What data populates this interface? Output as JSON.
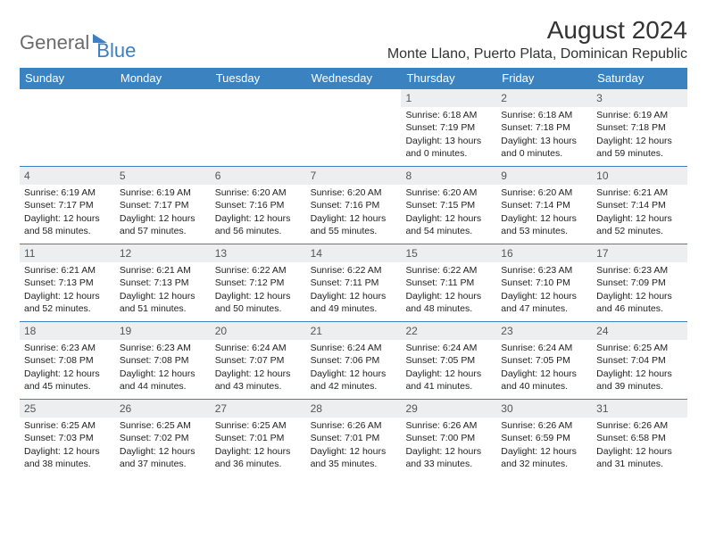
{
  "logo": {
    "part1": "General",
    "part2": "Blue"
  },
  "header": {
    "month_title": "August 2024",
    "location": "Monte Llano, Puerto Plata, Dominican Republic"
  },
  "colors": {
    "header_bar": "#3b83c0",
    "header_text": "#ffffff",
    "daynum_bg": "#eceef0",
    "daynum_text": "#555555",
    "body_text": "#222222",
    "logo_gray": "#6b6b6b",
    "logo_blue": "#3b7fc4",
    "rule": "#3b83c0"
  },
  "days_of_week": [
    "Sunday",
    "Monday",
    "Tuesday",
    "Wednesday",
    "Thursday",
    "Friday",
    "Saturday"
  ],
  "weeks": [
    [
      {
        "n": "",
        "sr": "",
        "ss": "",
        "dl": ""
      },
      {
        "n": "",
        "sr": "",
        "ss": "",
        "dl": ""
      },
      {
        "n": "",
        "sr": "",
        "ss": "",
        "dl": ""
      },
      {
        "n": "",
        "sr": "",
        "ss": "",
        "dl": ""
      },
      {
        "n": "1",
        "sr": "Sunrise: 6:18 AM",
        "ss": "Sunset: 7:19 PM",
        "dl": "Daylight: 13 hours and 0 minutes."
      },
      {
        "n": "2",
        "sr": "Sunrise: 6:18 AM",
        "ss": "Sunset: 7:18 PM",
        "dl": "Daylight: 13 hours and 0 minutes."
      },
      {
        "n": "3",
        "sr": "Sunrise: 6:19 AM",
        "ss": "Sunset: 7:18 PM",
        "dl": "Daylight: 12 hours and 59 minutes."
      }
    ],
    [
      {
        "n": "4",
        "sr": "Sunrise: 6:19 AM",
        "ss": "Sunset: 7:17 PM",
        "dl": "Daylight: 12 hours and 58 minutes."
      },
      {
        "n": "5",
        "sr": "Sunrise: 6:19 AM",
        "ss": "Sunset: 7:17 PM",
        "dl": "Daylight: 12 hours and 57 minutes."
      },
      {
        "n": "6",
        "sr": "Sunrise: 6:20 AM",
        "ss": "Sunset: 7:16 PM",
        "dl": "Daylight: 12 hours and 56 minutes."
      },
      {
        "n": "7",
        "sr": "Sunrise: 6:20 AM",
        "ss": "Sunset: 7:16 PM",
        "dl": "Daylight: 12 hours and 55 minutes."
      },
      {
        "n": "8",
        "sr": "Sunrise: 6:20 AM",
        "ss": "Sunset: 7:15 PM",
        "dl": "Daylight: 12 hours and 54 minutes."
      },
      {
        "n": "9",
        "sr": "Sunrise: 6:20 AM",
        "ss": "Sunset: 7:14 PM",
        "dl": "Daylight: 12 hours and 53 minutes."
      },
      {
        "n": "10",
        "sr": "Sunrise: 6:21 AM",
        "ss": "Sunset: 7:14 PM",
        "dl": "Daylight: 12 hours and 52 minutes."
      }
    ],
    [
      {
        "n": "11",
        "sr": "Sunrise: 6:21 AM",
        "ss": "Sunset: 7:13 PM",
        "dl": "Daylight: 12 hours and 52 minutes."
      },
      {
        "n": "12",
        "sr": "Sunrise: 6:21 AM",
        "ss": "Sunset: 7:13 PM",
        "dl": "Daylight: 12 hours and 51 minutes."
      },
      {
        "n": "13",
        "sr": "Sunrise: 6:22 AM",
        "ss": "Sunset: 7:12 PM",
        "dl": "Daylight: 12 hours and 50 minutes."
      },
      {
        "n": "14",
        "sr": "Sunrise: 6:22 AM",
        "ss": "Sunset: 7:11 PM",
        "dl": "Daylight: 12 hours and 49 minutes."
      },
      {
        "n": "15",
        "sr": "Sunrise: 6:22 AM",
        "ss": "Sunset: 7:11 PM",
        "dl": "Daylight: 12 hours and 48 minutes."
      },
      {
        "n": "16",
        "sr": "Sunrise: 6:23 AM",
        "ss": "Sunset: 7:10 PM",
        "dl": "Daylight: 12 hours and 47 minutes."
      },
      {
        "n": "17",
        "sr": "Sunrise: 6:23 AM",
        "ss": "Sunset: 7:09 PM",
        "dl": "Daylight: 12 hours and 46 minutes."
      }
    ],
    [
      {
        "n": "18",
        "sr": "Sunrise: 6:23 AM",
        "ss": "Sunset: 7:08 PM",
        "dl": "Daylight: 12 hours and 45 minutes."
      },
      {
        "n": "19",
        "sr": "Sunrise: 6:23 AM",
        "ss": "Sunset: 7:08 PM",
        "dl": "Daylight: 12 hours and 44 minutes."
      },
      {
        "n": "20",
        "sr": "Sunrise: 6:24 AM",
        "ss": "Sunset: 7:07 PM",
        "dl": "Daylight: 12 hours and 43 minutes."
      },
      {
        "n": "21",
        "sr": "Sunrise: 6:24 AM",
        "ss": "Sunset: 7:06 PM",
        "dl": "Daylight: 12 hours and 42 minutes."
      },
      {
        "n": "22",
        "sr": "Sunrise: 6:24 AM",
        "ss": "Sunset: 7:05 PM",
        "dl": "Daylight: 12 hours and 41 minutes."
      },
      {
        "n": "23",
        "sr": "Sunrise: 6:24 AM",
        "ss": "Sunset: 7:05 PM",
        "dl": "Daylight: 12 hours and 40 minutes."
      },
      {
        "n": "24",
        "sr": "Sunrise: 6:25 AM",
        "ss": "Sunset: 7:04 PM",
        "dl": "Daylight: 12 hours and 39 minutes."
      }
    ],
    [
      {
        "n": "25",
        "sr": "Sunrise: 6:25 AM",
        "ss": "Sunset: 7:03 PM",
        "dl": "Daylight: 12 hours and 38 minutes."
      },
      {
        "n": "26",
        "sr": "Sunrise: 6:25 AM",
        "ss": "Sunset: 7:02 PM",
        "dl": "Daylight: 12 hours and 37 minutes."
      },
      {
        "n": "27",
        "sr": "Sunrise: 6:25 AM",
        "ss": "Sunset: 7:01 PM",
        "dl": "Daylight: 12 hours and 36 minutes."
      },
      {
        "n": "28",
        "sr": "Sunrise: 6:26 AM",
        "ss": "Sunset: 7:01 PM",
        "dl": "Daylight: 12 hours and 35 minutes."
      },
      {
        "n": "29",
        "sr": "Sunrise: 6:26 AM",
        "ss": "Sunset: 7:00 PM",
        "dl": "Daylight: 12 hours and 33 minutes."
      },
      {
        "n": "30",
        "sr": "Sunrise: 6:26 AM",
        "ss": "Sunset: 6:59 PM",
        "dl": "Daylight: 12 hours and 32 minutes."
      },
      {
        "n": "31",
        "sr": "Sunrise: 6:26 AM",
        "ss": "Sunset: 6:58 PM",
        "dl": "Daylight: 12 hours and 31 minutes."
      }
    ]
  ]
}
